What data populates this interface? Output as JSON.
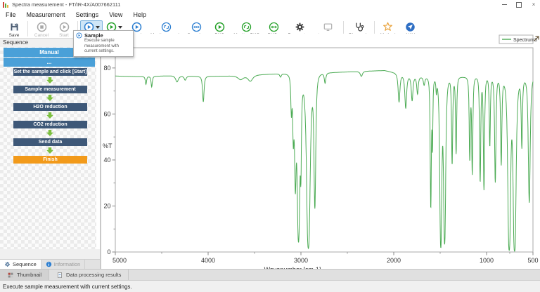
{
  "window": {
    "title": "Spectra measurement - FT/IR-4X/A007662111",
    "controls": [
      "minimize",
      "maximize",
      "close"
    ],
    "close_glyph": "×"
  },
  "menu": {
    "items": [
      "File",
      "Measurement",
      "Settings",
      "View",
      "Help"
    ]
  },
  "toolbar": {
    "buttons": [
      {
        "label": "Save",
        "icon": "save-icon",
        "state": "normal",
        "sep_after": true
      },
      {
        "label": "Cancel",
        "icon": "stop-circle-icon",
        "state": "disabled"
      },
      {
        "label": "Start",
        "icon": "play-circle-gray-icon",
        "state": "disabled",
        "sep_after": true
      },
      {
        "label": "Sample",
        "icon": "play-circle-blue-icon",
        "split": true,
        "state": "hover"
      },
      {
        "label": "BKG",
        "icon": "play-circle-green-icon",
        "split": true
      },
      {
        "label": "Sample",
        "icon": "play-circle-blue-icon"
      },
      {
        "label": "Monitor sample",
        "icon": "monitor-circle-blue-icon"
      },
      {
        "label": "Sample+",
        "icon": "arrows-circle-blue-icon"
      },
      {
        "label": "BKG",
        "icon": "play-circle-green-icon"
      },
      {
        "label": "Monitor BKG",
        "icon": "monitor-circle-green-icon"
      },
      {
        "label": "BKG+",
        "icon": "arrows-circle-green-icon"
      },
      {
        "label": "Parameters",
        "icon": "gear-icon"
      },
      {
        "label": "Accessory",
        "icon": "display-icon",
        "state": "disabled",
        "sep_after": true
      },
      {
        "label": "Diagnosis",
        "icon": "stethoscope-icon",
        "sep_after": true
      },
      {
        "label": "Method",
        "icon": "star-icon"
      },
      {
        "label": "NAV",
        "icon": "nav-icon"
      }
    ]
  },
  "tooltip": {
    "title": "Sample",
    "desc_line1": "Execute sample measurement with",
    "desc_line2": "current settings."
  },
  "sidebar": {
    "header": "Sequence",
    "mode": "Manual",
    "submode": "...",
    "steps": [
      "Set the sample and click [Start]",
      "Sample measurement",
      "H2O reduction",
      "CO2 reduction",
      "Send data"
    ],
    "finish": "Finish",
    "colors": {
      "mode_bar": "#4aa0d8",
      "step": "#3e5878",
      "finish": "#f29a1a",
      "arrow": "#7cbf3f"
    }
  },
  "tabs": {
    "panel_tabs": [
      {
        "label": "Sequence",
        "icon": "sequence-gear-icon",
        "active": true
      },
      {
        "label": "Information",
        "icon": "info-icon",
        "active": false
      }
    ],
    "dock_tabs": [
      {
        "label": "Thumbnail",
        "icon": "grid-icon",
        "active": true
      },
      {
        "label": "Data processing results",
        "icon": "document-icon",
        "active": false
      }
    ]
  },
  "status_bar": {
    "text": "Execute sample measurement with current settings."
  },
  "chart_data": {
    "type": "line",
    "series": [
      {
        "name": "Spectrum3",
        "color": "#4cab54"
      }
    ],
    "legend_position": "top-right",
    "xlabel": "Wavenumber [cm-1]",
    "ylabel": "%T",
    "x_axis": {
      "min": 500,
      "max": 5000,
      "reversed": true,
      "major_ticks": [
        5000,
        4000,
        3000,
        2000,
        1000,
        500
      ],
      "minor_ticks": [
        4500,
        3500,
        2500,
        1500,
        750
      ]
    },
    "y_axis": {
      "min": 0,
      "max": 88.8,
      "major_ticks": [
        0,
        20,
        40,
        60,
        80
      ],
      "minor_ticks": [
        10,
        30,
        50,
        70
      ]
    },
    "grid": false,
    "baseline_percentT": [
      [
        5000,
        76.5
      ],
      [
        4750,
        76.2
      ],
      [
        4400,
        76.6
      ],
      [
        4100,
        76.3
      ],
      [
        3800,
        76.5
      ],
      [
        3400,
        77.2
      ],
      [
        3150,
        77.7
      ],
      [
        2700,
        78.0
      ],
      [
        2300,
        78.6
      ],
      [
        2100,
        78.9
      ],
      [
        1950,
        77.6
      ],
      [
        1800,
        76.4
      ],
      [
        1650,
        76.0
      ],
      [
        1450,
        76.4
      ],
      [
        1250,
        76.1
      ],
      [
        1050,
        76.4
      ],
      [
        850,
        76.2
      ],
      [
        650,
        76.0
      ],
      [
        500,
        76.4
      ]
    ],
    "peak_fields": [
      "center_wavenumber_cm-1",
      "peak_absorbance",
      "half_width_cm-1"
    ],
    "peaks": [
      [
        4670,
        0.02,
        10
      ],
      [
        4608,
        0.027,
        10
      ],
      [
        4335,
        0.015,
        22
      ],
      [
        4247,
        0.01,
        16
      ],
      [
        4052,
        0.068,
        12
      ],
      [
        3650,
        0.01,
        45
      ],
      [
        3545,
        0.015,
        40
      ],
      [
        3220,
        0.008,
        12
      ],
      [
        3103,
        0.1,
        9
      ],
      [
        3082,
        0.18,
        9
      ],
      [
        3060,
        0.42,
        11
      ],
      [
        3026,
        1.25,
        13
      ],
      [
        3001,
        0.3,
        7
      ],
      [
        2920,
        1.7,
        15
      ],
      [
        2850,
        0.6,
        11
      ],
      [
        2740,
        0.025,
        12
      ],
      [
        2349,
        0.012,
        18
      ],
      [
        1943,
        0.075,
        14
      ],
      [
        1871,
        0.09,
        14
      ],
      [
        1802,
        0.065,
        13
      ],
      [
        1744,
        0.045,
        12
      ],
      [
        1673,
        0.02,
        12
      ],
      [
        1601,
        0.6,
        7
      ],
      [
        1583,
        0.22,
        6
      ],
      [
        1541,
        0.035,
        7
      ],
      [
        1493,
        1.6,
        9
      ],
      [
        1452,
        1.35,
        10
      ],
      [
        1371,
        0.3,
        8
      ],
      [
        1328,
        0.25,
        8
      ],
      [
        1181,
        0.28,
        8
      ],
      [
        1154,
        0.35,
        8
      ],
      [
        1069,
        0.4,
        8
      ],
      [
        1028,
        0.45,
        8
      ],
      [
        965,
        0.22,
        8
      ],
      [
        906,
        0.4,
        9
      ],
      [
        842,
        0.3,
        9
      ],
      [
        756,
        2.0,
        11
      ],
      [
        698,
        2.3,
        11
      ],
      [
        620,
        0.22,
        9
      ],
      [
        540,
        0.55,
        12
      ]
    ]
  }
}
